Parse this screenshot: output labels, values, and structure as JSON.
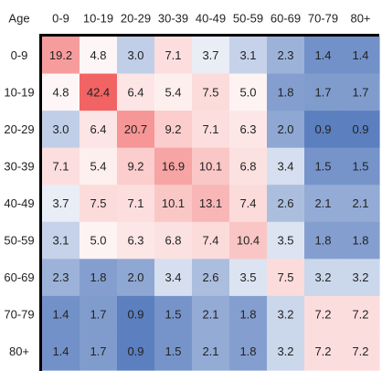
{
  "chart_data": {
    "type": "heatmap",
    "corner_label": "Age",
    "x_categories": [
      "0-9",
      "10-19",
      "20-29",
      "30-39",
      "40-49",
      "50-59",
      "60-69",
      "70-79",
      "80+"
    ],
    "y_categories": [
      "0-9",
      "10-19",
      "20-29",
      "30-39",
      "40-49",
      "50-59",
      "60-69",
      "70-79",
      "80+"
    ],
    "values": [
      [
        19.2,
        4.8,
        3.0,
        7.1,
        3.7,
        3.1,
        2.3,
        1.4,
        1.4
      ],
      [
        4.8,
        42.4,
        6.4,
        5.4,
        7.5,
        5.0,
        1.8,
        1.7,
        1.7
      ],
      [
        3.0,
        6.4,
        20.7,
        9.2,
        7.1,
        6.3,
        2.0,
        0.9,
        0.9
      ],
      [
        7.1,
        5.4,
        9.2,
        16.9,
        10.1,
        6.8,
        3.4,
        1.5,
        1.5
      ],
      [
        3.7,
        7.5,
        7.1,
        10.1,
        13.1,
        7.4,
        2.6,
        2.1,
        2.1
      ],
      [
        3.1,
        5.0,
        6.3,
        6.8,
        7.4,
        10.4,
        3.5,
        1.8,
        1.8
      ],
      [
        2.3,
        1.8,
        2.0,
        3.4,
        2.6,
        3.5,
        7.5,
        3.2,
        3.2
      ],
      [
        1.4,
        1.7,
        0.9,
        1.5,
        2.1,
        1.8,
        3.2,
        7.2,
        7.2
      ],
      [
        1.4,
        1.7,
        0.9,
        1.5,
        2.1,
        1.8,
        3.2,
        7.2,
        7.2
      ]
    ],
    "color_scale": {
      "low_color": "#5b7fbf",
      "mid_color": "#ffffff",
      "high_color": "#f26363",
      "mid_value": 4.0,
      "high_value": 42.4
    },
    "grid_lines": false
  }
}
